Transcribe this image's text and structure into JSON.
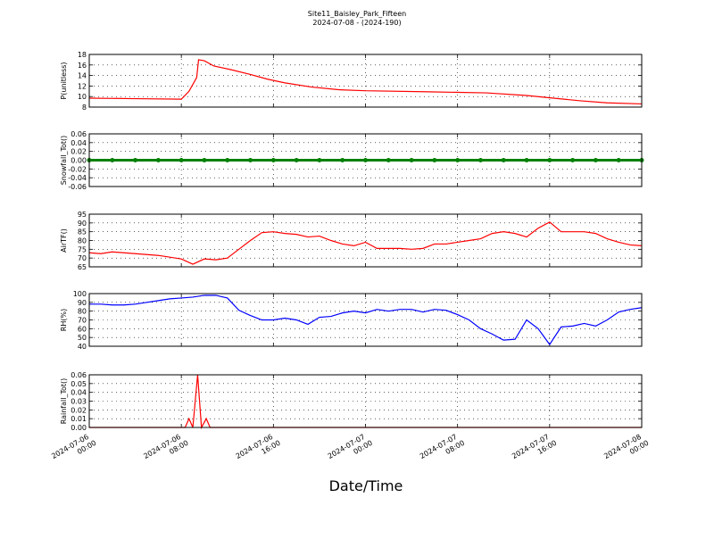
{
  "chart_data": [
    {
      "type": "line",
      "title": "Site11_Baisley_Park_Fifteen",
      "subtitle": "2024-07-08 - (2024-190)",
      "ylabel": "P(unitless)",
      "x": [
        "2024-07-06 00:00",
        "2024-07-06 04:00",
        "2024-07-06 08:00",
        "2024-07-06 08:40",
        "2024-07-06 09:20",
        "2024-07-06 09:30",
        "2024-07-06 10:00",
        "2024-07-06 10:50",
        "2024-07-06 12:20",
        "2024-07-06 14:00",
        "2024-07-06 15:30",
        "2024-07-06 17:00",
        "2024-07-06 19:20",
        "2024-07-06 21:40",
        "2024-07-07 00:00",
        "2024-07-07 05:30",
        "2024-07-07 10:30",
        "2024-07-07 14:00",
        "2024-07-07 16:20",
        "2024-07-07 18:40",
        "2024-07-07 21:00",
        "2024-07-08 00:00"
      ],
      "series": [
        {
          "name": "P",
          "color": "#ff0000",
          "values": [
            9.7,
            9.6,
            9.5,
            11,
            13.6,
            17,
            16.8,
            15.8,
            15.1,
            14.2,
            13.3,
            12.6,
            11.8,
            11.3,
            11.1,
            10.9,
            10.7,
            10.2,
            9.7,
            9.2,
            8.8,
            8.6
          ]
        }
      ],
      "ylim": [
        8,
        18
      ],
      "yticks": [
        8,
        10,
        12,
        14,
        16,
        18
      ],
      "grid": true
    },
    {
      "type": "line",
      "ylabel": "Snowfall_Tot()",
      "x": [
        "2024-07-06 00:00",
        "2024-07-06 02:00",
        "2024-07-06 04:00",
        "2024-07-06 06:00",
        "2024-07-06 08:00",
        "2024-07-06 10:00",
        "2024-07-06 12:00",
        "2024-07-06 14:00",
        "2024-07-06 16:00",
        "2024-07-06 18:00",
        "2024-07-06 20:00",
        "2024-07-06 22:00",
        "2024-07-07 00:00",
        "2024-07-07 02:00",
        "2024-07-07 04:00",
        "2024-07-07 06:00",
        "2024-07-07 08:00",
        "2024-07-07 10:00",
        "2024-07-07 12:00",
        "2024-07-07 14:00",
        "2024-07-07 16:00",
        "2024-07-07 18:00",
        "2024-07-07 20:00",
        "2024-07-07 22:00",
        "2024-07-08 00:00"
      ],
      "series": [
        {
          "name": "Snowfall_Tot",
          "color": "#008000",
          "values": [
            0,
            0,
            0,
            0,
            0,
            0,
            0,
            0,
            0,
            0,
            0,
            0,
            0,
            0,
            0,
            0,
            0,
            0,
            0,
            0,
            0,
            0,
            0,
            0,
            0
          ]
        }
      ],
      "markers": true,
      "ylim": [
        -0.06,
        0.06
      ],
      "yticks": [
        -0.06,
        -0.04,
        -0.02,
        {
          "value": 0,
          "label": "0.00"
        },
        0.02,
        0.04,
        0.06
      ],
      "grid": true
    },
    {
      "type": "line",
      "ylabel": "AirTF()",
      "x": [
        "2024-07-06 00:00",
        "2024-07-06 01:00",
        "2024-07-06 02:00",
        "2024-07-06 03:00",
        "2024-07-06 04:00",
        "2024-07-06 05:00",
        "2024-07-06 06:00",
        "2024-07-06 07:00",
        "2024-07-06 08:00",
        "2024-07-06 09:00",
        "2024-07-06 10:00",
        "2024-07-06 11:00",
        "2024-07-06 12:00",
        "2024-07-06 13:00",
        "2024-07-06 14:00",
        "2024-07-06 15:00",
        "2024-07-06 16:00",
        "2024-07-06 17:00",
        "2024-07-06 18:00",
        "2024-07-06 19:00",
        "2024-07-06 20:00",
        "2024-07-06 21:00",
        "2024-07-06 22:00",
        "2024-07-06 23:00",
        "2024-07-07 00:00",
        "2024-07-07 01:00",
        "2024-07-07 02:00",
        "2024-07-07 03:00",
        "2024-07-07 04:00",
        "2024-07-07 05:00",
        "2024-07-07 06:00",
        "2024-07-07 07:00",
        "2024-07-07 08:00",
        "2024-07-07 09:00",
        "2024-07-07 10:00",
        "2024-07-07 11:00",
        "2024-07-07 12:00",
        "2024-07-07 13:00",
        "2024-07-07 14:00",
        "2024-07-07 15:00",
        "2024-07-07 16:00",
        "2024-07-07 17:00",
        "2024-07-07 18:00",
        "2024-07-07 19:00",
        "2024-07-07 20:00",
        "2024-07-07 21:00",
        "2024-07-07 22:00",
        "2024-07-07 23:00",
        "2024-07-08 00:00"
      ],
      "series": [
        {
          "name": "AirTF",
          "color": "#ff0000",
          "values": [
            73,
            72.5,
            73.5,
            73,
            72.5,
            72,
            71.5,
            70.5,
            69.5,
            66.5,
            69.5,
            69,
            70,
            75,
            80,
            84.5,
            85,
            84,
            83.5,
            82,
            82.5,
            80,
            78,
            77,
            79,
            75.5,
            75.5,
            75.5,
            75,
            75.5,
            78,
            78,
            79,
            80,
            81,
            84,
            85,
            84,
            82,
            87,
            90.5,
            85,
            85,
            85,
            84,
            81,
            79,
            77.5,
            77
          ]
        }
      ],
      "ylim": [
        65,
        95
      ],
      "yticks": [
        65,
        70,
        75,
        80,
        85,
        90,
        95
      ],
      "grid": true
    },
    {
      "type": "line",
      "ylabel": "RH(%)",
      "x": [
        "2024-07-06 00:00",
        "2024-07-06 01:00",
        "2024-07-06 02:00",
        "2024-07-06 03:00",
        "2024-07-06 04:00",
        "2024-07-06 05:00",
        "2024-07-06 06:00",
        "2024-07-06 07:00",
        "2024-07-06 08:00",
        "2024-07-06 09:00",
        "2024-07-06 10:00",
        "2024-07-06 11:00",
        "2024-07-06 12:00",
        "2024-07-06 13:00",
        "2024-07-06 14:00",
        "2024-07-06 15:00",
        "2024-07-06 16:00",
        "2024-07-06 17:00",
        "2024-07-06 18:00",
        "2024-07-06 19:00",
        "2024-07-06 20:00",
        "2024-07-06 21:00",
        "2024-07-06 22:00",
        "2024-07-06 23:00",
        "2024-07-07 00:00",
        "2024-07-07 01:00",
        "2024-07-07 02:00",
        "2024-07-07 03:00",
        "2024-07-07 04:00",
        "2024-07-07 05:00",
        "2024-07-07 06:00",
        "2024-07-07 07:00",
        "2024-07-07 08:00",
        "2024-07-07 09:00",
        "2024-07-07 10:00",
        "2024-07-07 11:00",
        "2024-07-07 12:00",
        "2024-07-07 13:00",
        "2024-07-07 14:00",
        "2024-07-07 15:00",
        "2024-07-07 16:00",
        "2024-07-07 17:00",
        "2024-07-07 18:00",
        "2024-07-07 19:00",
        "2024-07-07 20:00",
        "2024-07-07 21:00",
        "2024-07-07 22:00",
        "2024-07-07 23:00",
        "2024-07-08 00:00"
      ],
      "series": [
        {
          "name": "RH",
          "color": "#0000ff",
          "values": [
            88,
            88,
            87,
            87,
            88,
            90,
            92,
            94,
            95,
            96,
            98,
            98,
            95,
            81,
            75,
            70,
            70,
            72,
            70,
            65,
            73,
            74,
            78,
            80,
            78,
            82,
            80,
            82,
            82,
            79,
            82,
            81,
            76,
            70,
            60,
            54,
            47,
            48,
            70,
            60,
            42,
            62,
            63,
            66,
            63,
            70,
            79,
            82,
            84
          ]
        }
      ],
      "ylim": [
        40,
        100
      ],
      "yticks": [
        40,
        50,
        60,
        70,
        80,
        90,
        100
      ],
      "grid": true
    },
    {
      "type": "line",
      "ylabel": "Rainfall_Tot()",
      "xlabel": "Date/Time",
      "x": [
        "2024-07-06 00:00",
        "2024-07-06 08:20",
        "2024-07-06 08:40",
        "2024-07-06 09:00",
        "2024-07-06 09:25",
        "2024-07-06 09:45",
        "2024-07-06 10:10",
        "2024-07-06 10:30",
        "2024-07-08 00:00"
      ],
      "series": [
        {
          "name": "Rainfall_Tot",
          "color": "#ff0000",
          "values": [
            0,
            0,
            0.01,
            0,
            0.06,
            0,
            0.01,
            0,
            0
          ]
        }
      ],
      "ylim": [
        0,
        0.06
      ],
      "yticks": [
        {
          "value": 0,
          "label": "0.00"
        },
        0.01,
        0.02,
        0.03,
        0.04,
        0.05,
        0.06
      ],
      "grid": true,
      "xlim": [
        "2024-07-06 00:00",
        "2024-07-08 00:00"
      ],
      "xticks": [
        {
          "value": "2024-07-06 00:00",
          "label": "2024-07-06\n00:00"
        },
        {
          "value": "2024-07-06 08:00",
          "label": "2024-07-06\n08:00"
        },
        {
          "value": "2024-07-06 16:00",
          "label": "2024-07-06\n16:00"
        },
        {
          "value": "2024-07-07 00:00",
          "label": "2024-07-07\n00:00"
        },
        {
          "value": "2024-07-07 08:00",
          "label": "2024-07-07\n08:00"
        },
        {
          "value": "2024-07-07 16:00",
          "label": "2024-07-07\n16:00"
        },
        {
          "value": "2024-07-08 00:00",
          "label": "2024-07-08\n00:00"
        }
      ]
    }
  ]
}
